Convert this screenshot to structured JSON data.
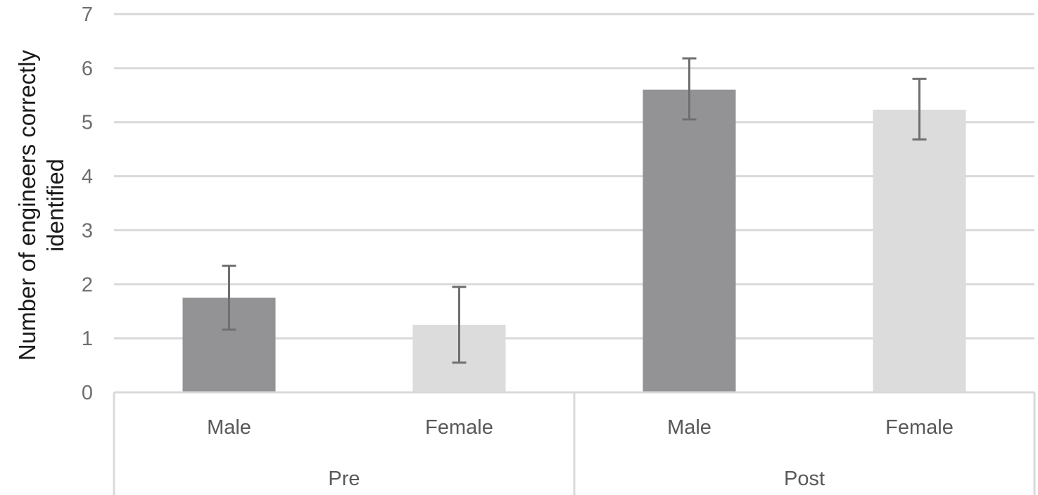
{
  "chart_data": {
    "type": "bar",
    "ylabel_lines": [
      "Number of engineers correctly",
      "identified"
    ],
    "ylim": [
      0,
      7
    ],
    "yticks": [
      0,
      1,
      2,
      3,
      4,
      5,
      6,
      7
    ],
    "grid": true,
    "groups": [
      {
        "label": "Pre",
        "categories": [
          "Male",
          "Female"
        ]
      },
      {
        "label": "Post",
        "categories": [
          "Male",
          "Female"
        ]
      }
    ],
    "bars": [
      {
        "group": "Pre",
        "category": "Male",
        "value": 1.75,
        "error_low": 1.16,
        "error_high": 2.34
      },
      {
        "group": "Pre",
        "category": "Female",
        "value": 1.25,
        "error_low": 0.55,
        "error_high": 1.95
      },
      {
        "group": "Post",
        "category": "Male",
        "value": 5.6,
        "error_low": 5.05,
        "error_high": 6.18
      },
      {
        "group": "Post",
        "category": "Female",
        "value": 5.23,
        "error_low": 4.68,
        "error_high": 5.8
      }
    ],
    "colors": {
      "Male": "#939396",
      "Female": "#dcdcdd"
    }
  }
}
